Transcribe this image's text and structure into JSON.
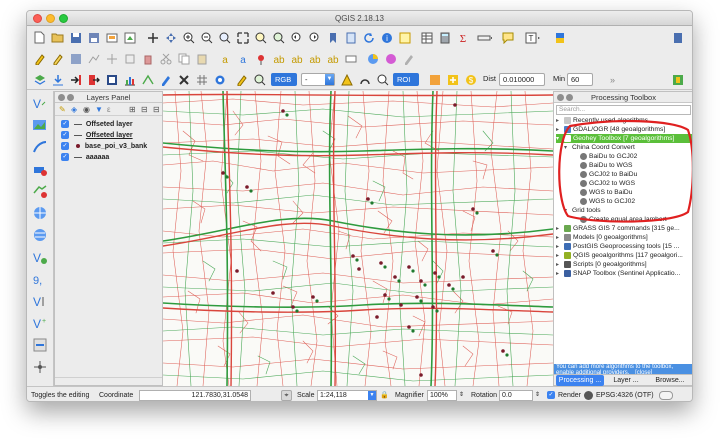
{
  "window": {
    "title": "QGIS 2.18.13"
  },
  "toolbar": {
    "rgb_combo": "RGB",
    "blank_combo": "-",
    "roi_combo": "ROI",
    "dist_label": "Dist",
    "dist_value": "0.010000",
    "min_label": "Min",
    "min_value": "60"
  },
  "layers_panel": {
    "title": "Layers Panel",
    "layers": [
      {
        "name": "Offseted layer",
        "style": "line"
      },
      {
        "name": "Offseted layer",
        "style": "line-bold"
      },
      {
        "name": "base_poi_v3_bank",
        "style": "point"
      },
      {
        "name": "aaaaaa",
        "style": "line"
      }
    ]
  },
  "processing_toolbox": {
    "title": "Processing Toolbox",
    "search_placeholder": "Search...",
    "tree": {
      "recent": "Recently used algorithms",
      "gdal": "GDAL/OGR [48 geoalgorithms]",
      "geohey": "Geohey Toolbox [7 geoalgorithms]",
      "china": "China Coord Convert",
      "china_items": [
        "BaiDu to GCJ02",
        "BaiDu to WGS",
        "GCJ02 to BaiDu",
        "GCJ02 to WGS",
        "WGS to BaiDu",
        "WGS to GCJ02"
      ],
      "grid": "Grid tools",
      "grid_item": "Create equal area lambert",
      "grass": "GRASS GIS 7 commands [315 ge...",
      "models": "Models [0 geoalgorithms]",
      "postgis": "PostGIS Geoprocessing tools [15 ...",
      "qgis": "QGIS geoalgorithms [117 geoalgori...",
      "scripts": "Scripts [0 geoalgorithms]",
      "snap": "SNAP Toolbox (Sentinel Applicatio..."
    },
    "notice": "You can add more algorithms to the toolbox,",
    "notice_link": "enable additional providers.",
    "notice_close": "[close]",
    "tabs": [
      "Processing ...",
      "Layer ...",
      "Browse..."
    ]
  },
  "statusbar": {
    "message": "Toggles the editing",
    "coord_label": "Coordinate",
    "coord_value": "121.7830,31.0548",
    "scale_label": "Scale",
    "scale_value": "1:24,118",
    "magnifier_label": "Magnifier",
    "magnifier_value": "100%",
    "rotation_label": "Rotation",
    "rotation_value": "0.0",
    "render_label": "Render",
    "crs": "EPSG:4326 (OTF)"
  },
  "colors": {
    "accent": "#3b82f0",
    "road_red": "#d9453c",
    "road_green": "#2e9b3e",
    "highlight_green": "#5bbf3a",
    "annotation_red": "#e02020",
    "notice_bg": "#4a90e2"
  }
}
